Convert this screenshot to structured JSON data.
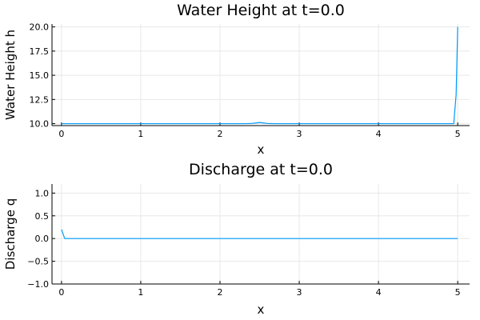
{
  "chart_data": [
    {
      "type": "line",
      "title": "Water Height at t=0.0",
      "xlabel": "x",
      "ylabel": "Water Height h",
      "xlim": [
        -0.12,
        5.15
      ],
      "ylim": [
        9.8,
        20.3
      ],
      "xticks": [
        0,
        1,
        2,
        3,
        4,
        5
      ],
      "xtick_labels": [
        "0",
        "1",
        "2",
        "3",
        "4",
        "5"
      ],
      "yticks": [
        10.0,
        12.5,
        15.0,
        17.5,
        20.0
      ],
      "ytick_labels": [
        "10.0",
        "12.5",
        "15.0",
        "17.5",
        "20.0"
      ],
      "grid": true,
      "legend": "none",
      "color": "#009af9",
      "series": [
        {
          "x": [
            0,
            0.5,
            1,
            1.5,
            2,
            2.3,
            2.4,
            2.45,
            2.5,
            2.55,
            2.6,
            2.7,
            3,
            3.5,
            4,
            4.5,
            4.95,
            4.98,
            5.0
          ],
          "values": [
            10.0,
            10.0,
            10.0,
            10.0,
            10.0,
            10.0,
            10.02,
            10.07,
            10.12,
            10.07,
            10.02,
            10.0,
            10.0,
            10.0,
            10.0,
            10.0,
            10.0,
            13.0,
            20.0
          ]
        }
      ]
    },
    {
      "type": "line",
      "title": "Discharge at t=0.0",
      "xlabel": "x",
      "ylabel": "Discharge q",
      "xlim": [
        -0.12,
        5.15
      ],
      "ylim": [
        -1.0,
        1.2
      ],
      "xticks": [
        0,
        1,
        2,
        3,
        4,
        5
      ],
      "xtick_labels": [
        "0",
        "1",
        "2",
        "3",
        "4",
        "5"
      ],
      "yticks": [
        -1.0,
        -0.5,
        0.0,
        0.5,
        1.0
      ],
      "ytick_labels": [
        "−1.0",
        "−0.5",
        "0.0",
        "0.5",
        "1.0"
      ],
      "grid": true,
      "legend": "none",
      "color": "#009af9",
      "series": [
        {
          "x": [
            0,
            0.04,
            0.5,
            1,
            2,
            3,
            4,
            5.0
          ],
          "values": [
            0.2,
            0.0,
            0.0,
            0.0,
            0.0,
            0.0,
            0.0,
            0.0
          ]
        }
      ]
    }
  ]
}
